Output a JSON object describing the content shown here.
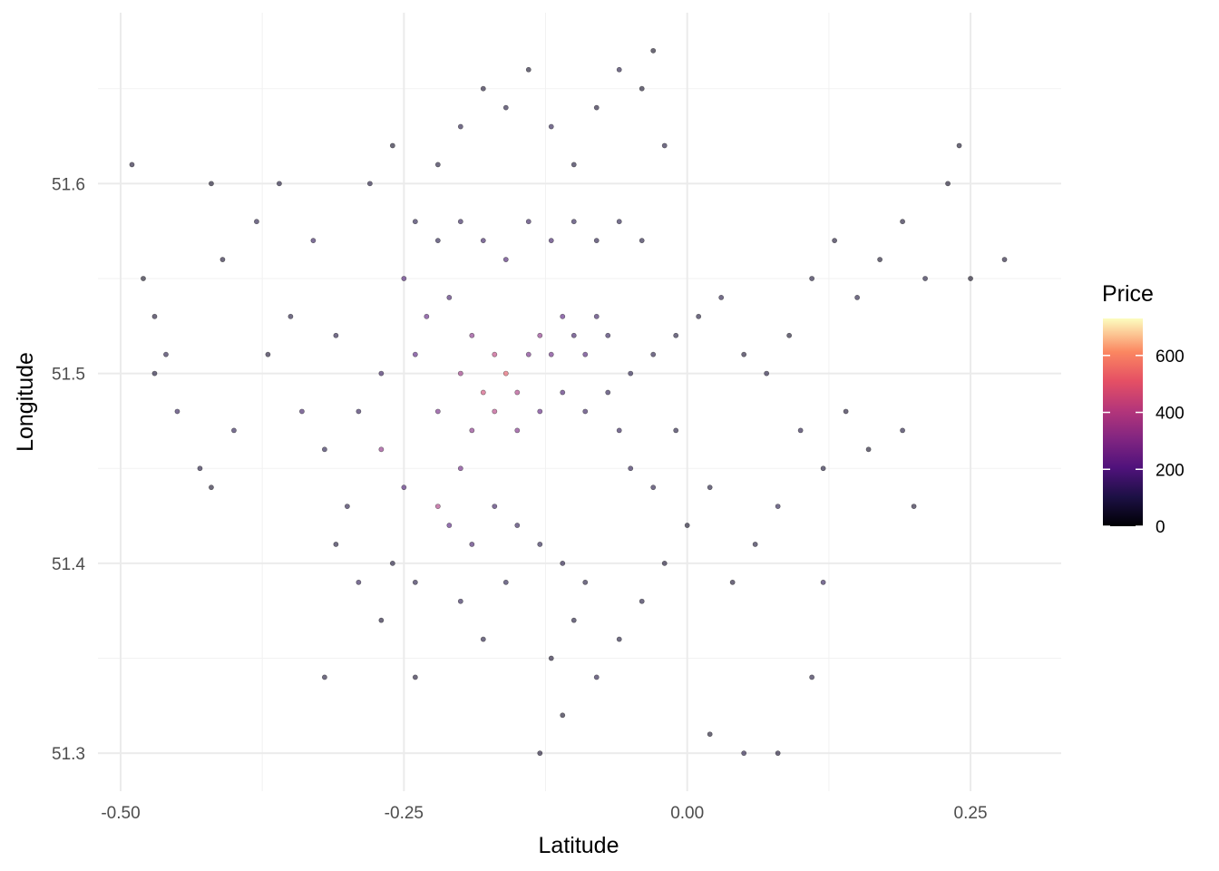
{
  "chart_data": {
    "type": "scatter",
    "title": "",
    "xlabel": "Latitude",
    "ylabel": "Longitude",
    "xlim": [
      -0.52,
      0.33
    ],
    "ylim": [
      51.28,
      51.69
    ],
    "x_ticks": [
      -0.5,
      -0.25,
      0.0,
      0.25
    ],
    "x_tick_labels": [
      "-0.50",
      "-0.25",
      "0.00",
      "0.25"
    ],
    "y_ticks": [
      51.3,
      51.4,
      51.5,
      51.6
    ],
    "y_tick_labels": [
      "51.3",
      "51.4",
      "51.5",
      "51.6"
    ],
    "grid": true,
    "point_alpha": 0.6,
    "color_scale": "magma",
    "legend": {
      "title": "Price",
      "placement": "right",
      "range": [
        0,
        730
      ],
      "ticks": [
        0,
        200,
        400,
        600
      ],
      "tick_labels": [
        "0",
        "200",
        "400",
        "600"
      ]
    },
    "points": [
      [
        -0.47,
        51.53,
        60
      ],
      [
        -0.46,
        51.51,
        90
      ],
      [
        -0.48,
        51.55,
        40
      ],
      [
        -0.45,
        51.48,
        120
      ],
      [
        -0.47,
        51.5,
        70
      ],
      [
        -0.43,
        51.45,
        80
      ],
      [
        -0.42,
        51.44,
        50
      ],
      [
        -0.4,
        51.47,
        110
      ],
      [
        -0.41,
        51.56,
        60
      ],
      [
        -0.38,
        51.58,
        90
      ],
      [
        -0.36,
        51.6,
        70
      ],
      [
        -0.33,
        51.57,
        130
      ],
      [
        -0.35,
        51.53,
        80
      ],
      [
        -0.37,
        51.51,
        60
      ],
      [
        -0.34,
        51.48,
        150
      ],
      [
        -0.32,
        51.46,
        100
      ],
      [
        -0.3,
        51.43,
        90
      ],
      [
        -0.31,
        51.41,
        70
      ],
      [
        -0.29,
        51.39,
        120
      ],
      [
        -0.27,
        51.37,
        60
      ],
      [
        -0.28,
        51.6,
        80
      ],
      [
        -0.26,
        51.62,
        50
      ],
      [
        -0.24,
        51.58,
        100
      ],
      [
        -0.22,
        51.61,
        70
      ],
      [
        -0.2,
        51.63,
        90
      ],
      [
        -0.18,
        51.65,
        60
      ],
      [
        -0.16,
        51.64,
        80
      ],
      [
        -0.14,
        51.66,
        50
      ],
      [
        -0.12,
        51.63,
        110
      ],
      [
        -0.1,
        51.61,
        70
      ],
      [
        -0.08,
        51.64,
        60
      ],
      [
        -0.06,
        51.66,
        90
      ],
      [
        -0.04,
        51.65,
        50
      ],
      [
        -0.03,
        51.67,
        40
      ],
      [
        -0.02,
        51.62,
        80
      ],
      [
        -0.25,
        51.55,
        180
      ],
      [
        -0.23,
        51.53,
        220
      ],
      [
        -0.21,
        51.54,
        160
      ],
      [
        -0.19,
        51.52,
        300
      ],
      [
        -0.17,
        51.51,
        420
      ],
      [
        -0.16,
        51.5,
        520
      ],
      [
        -0.15,
        51.49,
        380
      ],
      [
        -0.14,
        51.51,
        260
      ],
      [
        -0.13,
        51.52,
        310
      ],
      [
        -0.12,
        51.51,
        240
      ],
      [
        -0.11,
        51.53,
        200
      ],
      [
        -0.1,
        51.52,
        150
      ],
      [
        -0.09,
        51.51,
        180
      ],
      [
        -0.08,
        51.53,
        140
      ],
      [
        -0.07,
        51.52,
        120
      ],
      [
        -0.18,
        51.49,
        460
      ],
      [
        -0.2,
        51.5,
        350
      ],
      [
        -0.22,
        51.48,
        260
      ],
      [
        -0.19,
        51.47,
        300
      ],
      [
        -0.17,
        51.48,
        400
      ],
      [
        -0.15,
        51.47,
        280
      ],
      [
        -0.13,
        51.48,
        220
      ],
      [
        -0.11,
        51.49,
        170
      ],
      [
        -0.09,
        51.48,
        130
      ],
      [
        -0.07,
        51.49,
        110
      ],
      [
        -0.05,
        51.5,
        100
      ],
      [
        -0.03,
        51.51,
        90
      ],
      [
        -0.01,
        51.52,
        80
      ],
      [
        0.01,
        51.53,
        70
      ],
      [
        0.03,
        51.54,
        90
      ],
      [
        0.05,
        51.51,
        60
      ],
      [
        0.07,
        51.5,
        80
      ],
      [
        0.09,
        51.52,
        50
      ],
      [
        0.11,
        51.55,
        70
      ],
      [
        0.13,
        51.57,
        60
      ],
      [
        0.15,
        51.54,
        80
      ],
      [
        0.17,
        51.56,
        50
      ],
      [
        0.19,
        51.58,
        60
      ],
      [
        0.21,
        51.55,
        70
      ],
      [
        0.23,
        51.6,
        50
      ],
      [
        0.25,
        51.55,
        40
      ],
      [
        0.28,
        51.56,
        60
      ],
      [
        0.1,
        51.47,
        90
      ],
      [
        0.12,
        51.45,
        70
      ],
      [
        0.14,
        51.48,
        60
      ],
      [
        0.16,
        51.46,
        50
      ],
      [
        0.19,
        51.47,
        80
      ],
      [
        0.2,
        51.43,
        60
      ],
      [
        0.08,
        51.43,
        100
      ],
      [
        0.06,
        51.41,
        70
      ],
      [
        -0.2,
        51.45,
        250
      ],
      [
        -0.22,
        51.43,
        380
      ],
      [
        -0.21,
        51.42,
        200
      ],
      [
        -0.19,
        51.41,
        160
      ],
      [
        -0.17,
        51.43,
        140
      ],
      [
        -0.15,
        51.42,
        120
      ],
      [
        -0.13,
        51.41,
        100
      ],
      [
        -0.11,
        51.4,
        90
      ],
      [
        -0.09,
        51.39,
        80
      ],
      [
        -0.1,
        51.37,
        70
      ],
      [
        -0.12,
        51.35,
        60
      ],
      [
        -0.08,
        51.34,
        90
      ],
      [
        -0.11,
        51.32,
        50
      ],
      [
        -0.13,
        51.3,
        60
      ],
      [
        -0.06,
        51.36,
        70
      ],
      [
        -0.04,
        51.38,
        80
      ],
      [
        -0.02,
        51.4,
        60
      ],
      [
        0.0,
        51.42,
        50
      ],
      [
        0.02,
        51.44,
        70
      ],
      [
        0.04,
        51.39,
        60
      ],
      [
        0.02,
        51.31,
        50
      ],
      [
        0.05,
        51.3,
        90
      ],
      [
        0.08,
        51.3,
        60
      ],
      [
        0.11,
        51.34,
        80
      ],
      [
        0.12,
        51.39,
        120
      ],
      [
        -0.27,
        51.46,
        320
      ],
      [
        -0.25,
        51.44,
        180
      ],
      [
        -0.29,
        51.48,
        120
      ],
      [
        -0.31,
        51.52,
        90
      ],
      [
        -0.27,
        51.5,
        140
      ],
      [
        -0.24,
        51.51,
        200
      ],
      [
        -0.05,
        51.45,
        110
      ],
      [
        -0.03,
        51.44,
        90
      ],
      [
        -0.06,
        51.47,
        120
      ],
      [
        -0.01,
        51.47,
        80
      ],
      [
        -0.14,
        51.58,
        130
      ],
      [
        -0.12,
        51.57,
        150
      ],
      [
        -0.1,
        51.58,
        110
      ],
      [
        -0.08,
        51.57,
        90
      ],
      [
        -0.06,
        51.58,
        100
      ],
      [
        -0.04,
        51.57,
        80
      ],
      [
        -0.16,
        51.56,
        170
      ],
      [
        -0.18,
        51.57,
        140
      ],
      [
        -0.2,
        51.58,
        120
      ],
      [
        -0.22,
        51.57,
        100
      ],
      [
        -0.24,
        51.39,
        90
      ],
      [
        -0.26,
        51.4,
        70
      ],
      [
        -0.2,
        51.38,
        110
      ],
      [
        -0.18,
        51.36,
        80
      ],
      [
        -0.16,
        51.39,
        100
      ],
      [
        -0.49,
        51.61,
        60
      ],
      [
        -0.42,
        51.6,
        50
      ],
      [
        -0.32,
        51.34,
        70
      ],
      [
        -0.24,
        51.34,
        60
      ],
      [
        0.24,
        51.62,
        50
      ]
    ]
  }
}
